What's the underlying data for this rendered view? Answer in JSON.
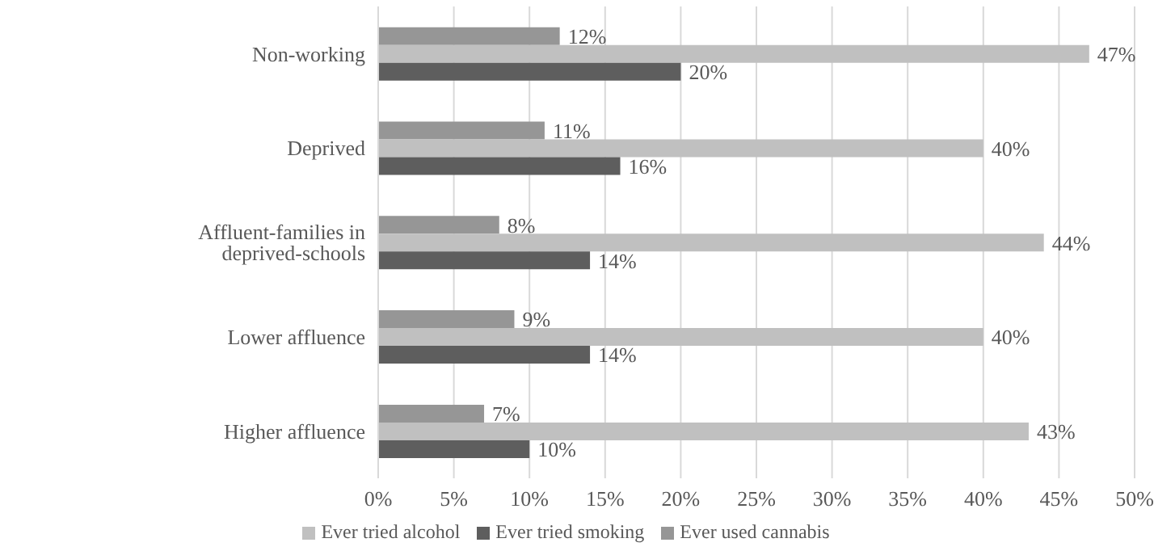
{
  "chart_data": {
    "type": "bar",
    "orientation": "horizontal",
    "categories": [
      "Non-working",
      "Deprived",
      "Affluent-families in deprived-schools",
      "Lower affluence",
      "Higher affluence"
    ],
    "series": [
      {
        "name": "Ever used cannabis",
        "color": "#969696",
        "values": [
          12,
          11,
          8,
          9,
          7
        ],
        "value_labels": [
          "12%",
          "11%",
          "8%",
          "9%",
          "7%"
        ]
      },
      {
        "name": "Ever tried alcohol",
        "color": "#c0c0c0",
        "values": [
          47,
          40,
          44,
          40,
          43
        ],
        "value_labels": [
          "47%",
          "40%",
          "44%",
          "40%",
          "43%"
        ]
      },
      {
        "name": "Ever tried smoking",
        "color": "#5e5e5e",
        "values": [
          20,
          16,
          14,
          14,
          10
        ],
        "value_labels": [
          "20%",
          "16%",
          "14%",
          "14%",
          "10%"
        ]
      }
    ],
    "xlim": [
      0,
      50
    ],
    "xticks": [
      {
        "value": 0,
        "label": "0%"
      },
      {
        "value": 5,
        "label": "5%"
      },
      {
        "value": 10,
        "label": "10%"
      },
      {
        "value": 15,
        "label": "15%"
      },
      {
        "value": 20,
        "label": "20%"
      },
      {
        "value": 25,
        "label": "25%"
      },
      {
        "value": 30,
        "label": "30%"
      },
      {
        "value": 35,
        "label": "35%"
      },
      {
        "value": 40,
        "label": "40%"
      },
      {
        "value": 45,
        "label": "45%"
      },
      {
        "value": 50,
        "label": "50%"
      }
    ],
    "grid": "x",
    "legend": "bottom"
  }
}
